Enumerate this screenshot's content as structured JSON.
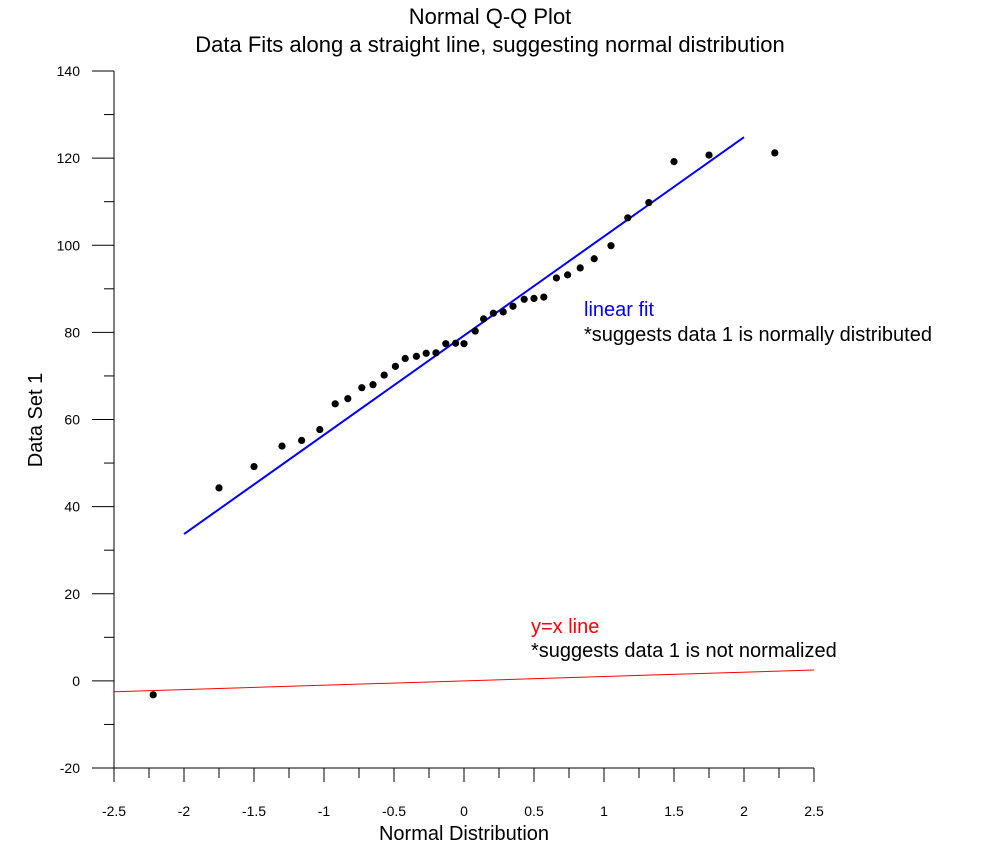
{
  "chart_data": {
    "type": "scatter",
    "title": "Normal Q-Q Plot",
    "subtitle": "Data Fits along a straight line, suggesting normal distribution",
    "xlabel": "Normal Distribution",
    "ylabel": "Data Set 1",
    "xlim": [
      -2.5,
      2.5
    ],
    "ylim": [
      -20,
      140
    ],
    "grid": false,
    "x_ticks": [
      "-2.5",
      "-2",
      "-1.5",
      "-1",
      "-0.5",
      "0",
      "0.5",
      "1",
      "1.5",
      "2",
      "2.5"
    ],
    "y_ticks": [
      "-20",
      "0",
      "20",
      "40",
      "60",
      "80",
      "100",
      "120",
      "140"
    ],
    "points": [
      [
        -2.22,
        -3.2
      ],
      [
        -1.75,
        44.3
      ],
      [
        -1.5,
        49.2
      ],
      [
        -1.3,
        53.9
      ],
      [
        -1.16,
        55.2
      ],
      [
        -1.03,
        57.7
      ],
      [
        -0.92,
        63.6
      ],
      [
        -0.83,
        64.8
      ],
      [
        -0.73,
        67.3
      ],
      [
        -0.65,
        68.0
      ],
      [
        -0.57,
        70.2
      ],
      [
        -0.49,
        72.2
      ],
      [
        -0.42,
        74.0
      ],
      [
        -0.34,
        74.5
      ],
      [
        -0.27,
        75.2
      ],
      [
        -0.2,
        75.3
      ],
      [
        -0.13,
        77.4
      ],
      [
        -0.06,
        77.5
      ],
      [
        0.0,
        77.4
      ],
      [
        0.08,
        80.3
      ],
      [
        0.14,
        83.1
      ],
      [
        0.21,
        84.4
      ],
      [
        0.28,
        84.7
      ],
      [
        0.35,
        86.0
      ],
      [
        0.43,
        87.6
      ],
      [
        0.5,
        87.8
      ],
      [
        0.57,
        88.1
      ],
      [
        0.66,
        92.5
      ],
      [
        0.74,
        93.2
      ],
      [
        0.83,
        94.8
      ],
      [
        0.93,
        96.9
      ],
      [
        1.05,
        99.9
      ],
      [
        1.17,
        106.3
      ],
      [
        1.32,
        109.8
      ],
      [
        1.5,
        119.2
      ],
      [
        1.75,
        120.7
      ],
      [
        2.22,
        121.2
      ]
    ],
    "lines": [
      {
        "name": "linear fit",
        "color": "#0000ff",
        "x": [
          -2.0,
          2.0
        ],
        "y": [
          33.7,
          124.8
        ]
      },
      {
        "name": "y=x line",
        "color": "#ff0000",
        "x": [
          -2.5,
          2.5
        ],
        "y": [
          -2.5,
          2.5
        ]
      }
    ],
    "annotations": [
      {
        "label": "linear fit",
        "label_color": "#0000ff",
        "note": "*suggests data 1 is normally distributed"
      },
      {
        "label": "y=x line",
        "label_color": "#ff0000",
        "note": "*suggests data 1 is not normalized"
      }
    ]
  }
}
